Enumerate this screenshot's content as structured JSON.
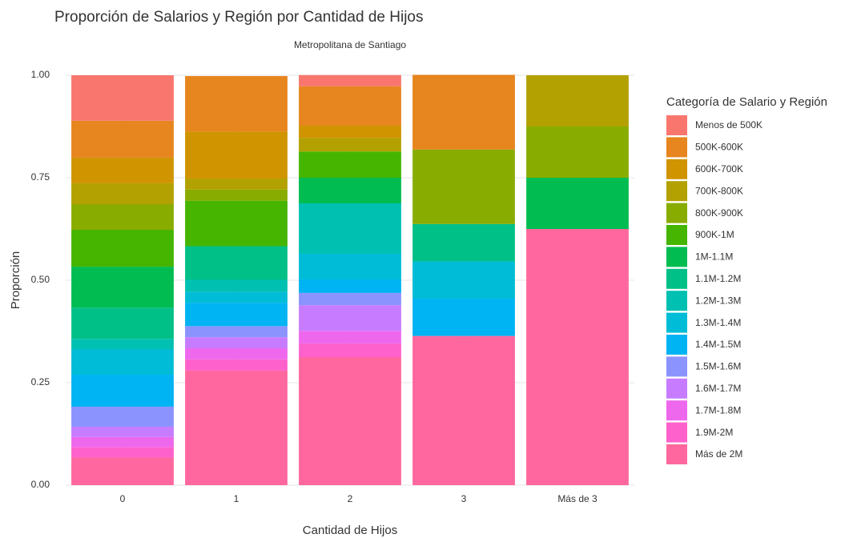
{
  "chart_data": {
    "type": "stacked_bar",
    "title": "Proporción de Salarios y Región por Cantidad de Hijos",
    "subtitle": "Metropolitana de Santiago",
    "x_label": "Cantidad de Hijos",
    "y_label": "Proporción",
    "legend_title": "Categoría de Salario y Región",
    "legend_position": "right",
    "grid": true,
    "categories": [
      "0",
      "1",
      "2",
      "3",
      "Más de 3"
    ],
    "ylim": [
      0,
      1
    ],
    "yticks": [
      {
        "value": 0,
        "label": "0.00"
      },
      {
        "value": 0.25,
        "label": "0.25"
      },
      {
        "value": 0.5,
        "label": "0.50"
      },
      {
        "value": 0.75,
        "label": "0.75"
      },
      {
        "value": 1,
        "label": "1.00"
      }
    ],
    "series": [
      {
        "name": "Menos de 500K",
        "color": "#F8766D",
        "values": [
          0.111,
          0,
          0.0275,
          0,
          0
        ]
      },
      {
        "name": "500K-600K",
        "color": "#E7851E",
        "values": [
          0.09,
          0.135,
          0.096,
          0.182,
          0
        ]
      },
      {
        "name": "600K-700K",
        "color": "#D09400",
        "values": [
          0.0625,
          0.115,
          0.03,
          0,
          0
        ]
      },
      {
        "name": "700K-800K",
        "color": "#B2A100",
        "values": [
          0.051,
          0.027,
          0.033,
          0,
          0.125
        ]
      },
      {
        "name": "800K-900K",
        "color": "#89AC00",
        "values": [
          0.0625,
          0.027,
          0,
          0.182,
          0.125
        ]
      },
      {
        "name": "900K-1M",
        "color": "#45B500",
        "values": [
          0.09,
          0.111,
          0.064,
          0,
          0
        ]
      },
      {
        "name": "1M-1.1M",
        "color": "#00BC51",
        "values": [
          0.1,
          0,
          0.0625,
          0,
          0.125
        ]
      },
      {
        "name": "1.1M-1.2M",
        "color": "#00C087",
        "values": [
          0.076,
          0.082,
          0,
          0.091,
          0
        ]
      },
      {
        "name": "1.2M-1.3M",
        "color": "#00C0B2",
        "values": [
          0.025,
          0.029,
          0.123,
          0,
          0
        ]
      },
      {
        "name": "1.3M-1.4M",
        "color": "#00BCD6",
        "values": [
          0.0625,
          0.027,
          0.0625,
          0.091,
          0
        ]
      },
      {
        "name": "1.4M-1.5M",
        "color": "#00B3F2",
        "values": [
          0.078,
          0.057,
          0.033,
          0.091,
          0
        ]
      },
      {
        "name": "1.5M-1.6M",
        "color": "#8B93FF",
        "values": [
          0.049,
          0.027,
          0.03,
          0,
          0
        ]
      },
      {
        "name": "1.6M-1.7M",
        "color": "#C77CFF",
        "values": [
          0.025,
          0.027,
          0.0625,
          0,
          0
        ]
      },
      {
        "name": "1.7M-1.8M",
        "color": "#ED68ED",
        "values": [
          0.025,
          0.027,
          0.031,
          0,
          0
        ]
      },
      {
        "name": "1.9M-2M",
        "color": "#FF61CC",
        "values": [
          0.025,
          0.027,
          0.033,
          0,
          0
        ]
      },
      {
        "name": "Más de 2M",
        "color": "#FF679E",
        "values": [
          0.0675,
          0.28,
          0.3125,
          0.364,
          0.625
        ]
      }
    ]
  }
}
